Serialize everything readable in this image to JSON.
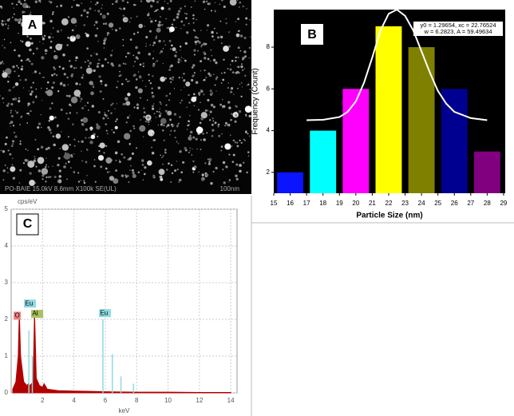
{
  "sem_image": {
    "label": "A",
    "caption": "PO-BAIE 15.0kV 8.6mm X100k SE(UL)",
    "scale_bar": "100nm"
  },
  "chart_data": [
    {
      "type": "bar",
      "panel_label": "B",
      "x": [
        16,
        18,
        20,
        22,
        24,
        26,
        28
      ],
      "values": [
        2,
        4,
        6,
        9,
        8,
        6,
        3
      ],
      "colors": [
        "#0a14ff",
        "#00ffff",
        "#ff00ff",
        "#ffff00",
        "#808000",
        "#000090",
        "#800080"
      ],
      "xlim": [
        15,
        29.1
      ],
      "xticks": [
        15,
        16,
        17,
        18,
        19,
        20,
        21,
        22,
        23,
        24,
        25,
        26,
        27,
        28,
        29
      ],
      "ylim": [
        1,
        9.8
      ],
      "yticks": [
        2,
        4,
        6,
        8
      ],
      "xlabel": "Particle Size (nm)",
      "ylabel": "Frequency (Count)",
      "fit": {
        "color": "#ffffff",
        "x": [
          17,
          18,
          19,
          19.5,
          20,
          20.5,
          21,
          21.5,
          22,
          22.5,
          23,
          23.5,
          24,
          24.5,
          25,
          25.5,
          26,
          27,
          28
        ],
        "values": [
          4.5,
          4.52,
          4.65,
          4.9,
          5.4,
          6.3,
          7.5,
          8.8,
          9.6,
          9.8,
          9.5,
          8.8,
          7.8,
          6.8,
          5.9,
          5.3,
          4.9,
          4.6,
          4.5
        ]
      },
      "annotation": [
        "y0 = 1.29654, xc = 22.76524",
        "w = 6.2823, A = 59.49634"
      ]
    },
    {
      "type": "area",
      "panel_label": "C",
      "xlim": [
        0,
        14.4
      ],
      "xticks": [
        2,
        4,
        6,
        8,
        10,
        12,
        14
      ],
      "ylim": [
        0,
        5
      ],
      "yticks": [
        0,
        1,
        2,
        3,
        4,
        5
      ],
      "xlabel": "keV",
      "ylabel": "cps/eV",
      "grid": true,
      "series": [
        {
          "style": "area",
          "color": "#b00000",
          "x": [
            0.1,
            0.3,
            0.45,
            0.52,
            0.6,
            0.8,
            1.0,
            1.1,
            1.2,
            1.4,
            1.49,
            1.6,
            1.8,
            2.0,
            2.1,
            2.3,
            3,
            4,
            5,
            6,
            8,
            10,
            12,
            14
          ],
          "values": [
            0.1,
            0.3,
            1.0,
            2.2,
            1.0,
            0.3,
            0.2,
            0.25,
            0.2,
            0.3,
            2.2,
            0.4,
            0.2,
            0.15,
            0.25,
            0.1,
            0.06,
            0.05,
            0.04,
            0.03,
            0.02,
            0.02,
            0.01,
            0.01
          ]
        },
        {
          "style": "stems",
          "color": "#8fdbe3",
          "x": [
            1.13,
            1.35,
            5.85,
            6.45,
            7.0,
            7.8
          ],
          "values": [
            1.7,
            1.0,
            2.0,
            1.05,
            0.45,
            0.25
          ]
        }
      ],
      "annotations": [
        {
          "text": "O",
          "x": 0.46,
          "y": 2.1,
          "color": "#f08080"
        },
        {
          "text": "Eu",
          "x": 1.12,
          "y": 2.43,
          "color": "#8fdbe3"
        },
        {
          "text": "Al",
          "x": 1.58,
          "y": 2.15,
          "color": "#a8c060"
        },
        {
          "text": "Eu",
          "x": 5.9,
          "y": 2.17,
          "color": "#8fdbe3"
        }
      ]
    }
  ]
}
